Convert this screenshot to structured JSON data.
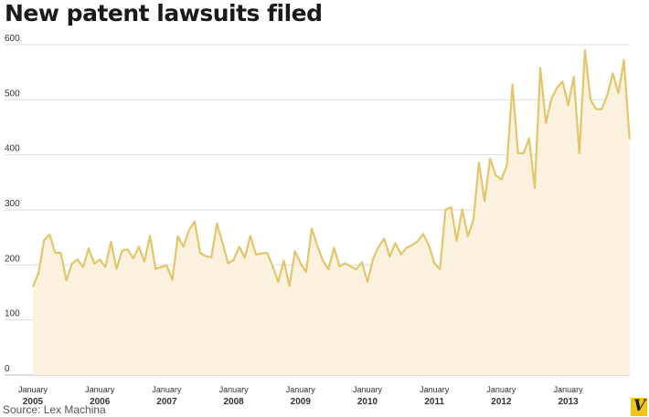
{
  "colors": {
    "line": "#e3c66a",
    "fill": "#faf2df",
    "grid": "#dddddd",
    "logo_bg": "#f2c318"
  },
  "source": "Source: Lex Machina",
  "logo_text": "V",
  "chart_data": {
    "type": "area",
    "title": "New patent lawsuits filed",
    "xlabel": "",
    "ylabel": "",
    "ylim": [
      0,
      600
    ],
    "yticks": [
      "0",
      "100",
      "200",
      "300",
      "400",
      "500",
      "600"
    ],
    "xticks": [
      {
        "top": "January",
        "bottom": "2005",
        "month_index": 0
      },
      {
        "top": "January",
        "bottom": "2006",
        "month_index": 12
      },
      {
        "top": "January",
        "bottom": "2007",
        "month_index": 24
      },
      {
        "top": "January",
        "bottom": "2008",
        "month_index": 36
      },
      {
        "top": "January",
        "bottom": "2009",
        "month_index": 48
      },
      {
        "top": "January",
        "bottom": "2010",
        "month_index": 60
      },
      {
        "top": "January",
        "bottom": "2011",
        "month_index": 72
      },
      {
        "top": "January",
        "bottom": "2012",
        "month_index": 84
      },
      {
        "top": "January",
        "bottom": "2013",
        "month_index": 96
      }
    ],
    "grid": true,
    "x_start": "2005-01",
    "series": [
      {
        "values": [
          160,
          185,
          245,
          255,
          222,
          222,
          172,
          202,
          210,
          196,
          230,
          202,
          210,
          196,
          242,
          193,
          226,
          228,
          212,
          233,
          206,
          253,
          193,
          196,
          199,
          173,
          252,
          233,
          263,
          279,
          222,
          216,
          214,
          275,
          240,
          203,
          209,
          233,
          213,
          253,
          219,
          221,
          222,
          198,
          169,
          208,
          162,
          225,
          203,
          187,
          266,
          235,
          208,
          192,
          231,
          197,
          203,
          197,
          192,
          205,
          169,
          211,
          233,
          248,
          215,
          240,
          219,
          231,
          236,
          243,
          256,
          236,
          203,
          192,
          300,
          305,
          244,
          301,
          252,
          282,
          386,
          316,
          393,
          363,
          355,
          380,
          528,
          403,
          403,
          430,
          340,
          557,
          458,
          502,
          522,
          533,
          490,
          542,
          403,
          590,
          500,
          483,
          483,
          508,
          548,
          512,
          572,
          428
        ]
      }
    ]
  }
}
